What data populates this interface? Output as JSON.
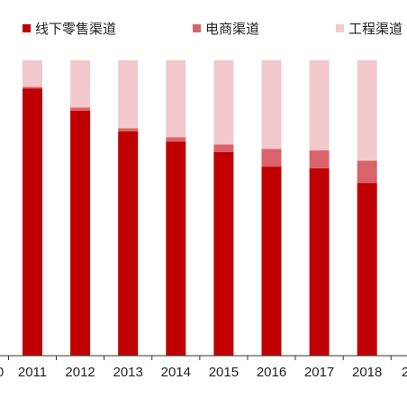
{
  "chart_data": {
    "type": "bar",
    "stacked": true,
    "percent": true,
    "categories": [
      "2011",
      "2012",
      "2013",
      "2014",
      "2015",
      "2016",
      "2017",
      "2018"
    ],
    "clipped_left_label": "0",
    "clipped_right_label": "2",
    "series": [
      {
        "name": "线下零售渠道",
        "color": "#c00000",
        "values": [
          90.5,
          83,
          76,
          72.5,
          69,
          64,
          63.5,
          58.5
        ]
      },
      {
        "name": "电商渠道",
        "color": "#d9636a",
        "values": [
          0.5,
          1,
          1,
          1.5,
          2.5,
          6,
          6,
          7.5
        ]
      },
      {
        "name": "工程渠道",
        "color": "#f2c9cc",
        "values": [
          9,
          16,
          23,
          26,
          28.5,
          30,
          30.5,
          34
        ]
      }
    ],
    "ylim": [
      0,
      100
    ],
    "grid": false,
    "legend": "top"
  }
}
